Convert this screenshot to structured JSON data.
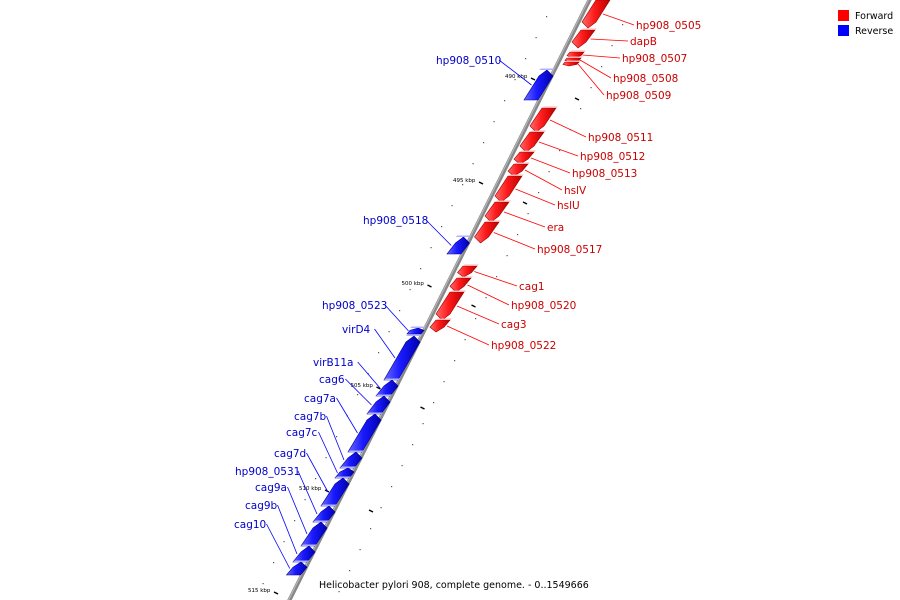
{
  "caption": "Helicobacter pylori 908, complete genome. - 0..1549666",
  "legend": [
    {
      "label": "Forward",
      "color": "#ff0000"
    },
    {
      "label": "Reverse",
      "color": "#0000ff"
    }
  ],
  "colors": {
    "forward": "#ff0000",
    "reverse": "#0000ff",
    "backbone": "#888888"
  },
  "ticks": [
    "490 kbp",
    "495 kbp",
    "500 kbp",
    "505 kbp",
    "510 kbp",
    "515 kbp"
  ],
  "genes": [
    {
      "name": "hp908_0505",
      "strand": "forward"
    },
    {
      "name": "dapB",
      "strand": "forward"
    },
    {
      "name": "hp908_0507",
      "strand": "forward"
    },
    {
      "name": "hp908_0508",
      "strand": "forward"
    },
    {
      "name": "hp908_0509",
      "strand": "forward"
    },
    {
      "name": "hp908_0510",
      "strand": "reverse"
    },
    {
      "name": "hp908_0511",
      "strand": "forward"
    },
    {
      "name": "hp908_0512",
      "strand": "forward"
    },
    {
      "name": "hp908_0513",
      "strand": "forward"
    },
    {
      "name": "hslV",
      "strand": "forward"
    },
    {
      "name": "hslU",
      "strand": "forward"
    },
    {
      "name": "era",
      "strand": "forward"
    },
    {
      "name": "hp908_0517",
      "strand": "forward"
    },
    {
      "name": "hp908_0518",
      "strand": "reverse"
    },
    {
      "name": "cag1",
      "strand": "forward"
    },
    {
      "name": "hp908_0520",
      "strand": "forward"
    },
    {
      "name": "cag3",
      "strand": "forward"
    },
    {
      "name": "hp908_0522",
      "strand": "forward"
    },
    {
      "name": "hp908_0523",
      "strand": "reverse"
    },
    {
      "name": "virD4",
      "strand": "reverse"
    },
    {
      "name": "virB11a",
      "strand": "reverse"
    },
    {
      "name": "cag6",
      "strand": "reverse"
    },
    {
      "name": "cag7a",
      "strand": "reverse"
    },
    {
      "name": "cag7b",
      "strand": "reverse"
    },
    {
      "name": "cag7c",
      "strand": "reverse"
    },
    {
      "name": "cag7d",
      "strand": "reverse"
    },
    {
      "name": "hp908_0531",
      "strand": "reverse"
    },
    {
      "name": "cag9a",
      "strand": "reverse"
    },
    {
      "name": "cag9b",
      "strand": "reverse"
    },
    {
      "name": "cag10",
      "strand": "reverse"
    }
  ]
}
